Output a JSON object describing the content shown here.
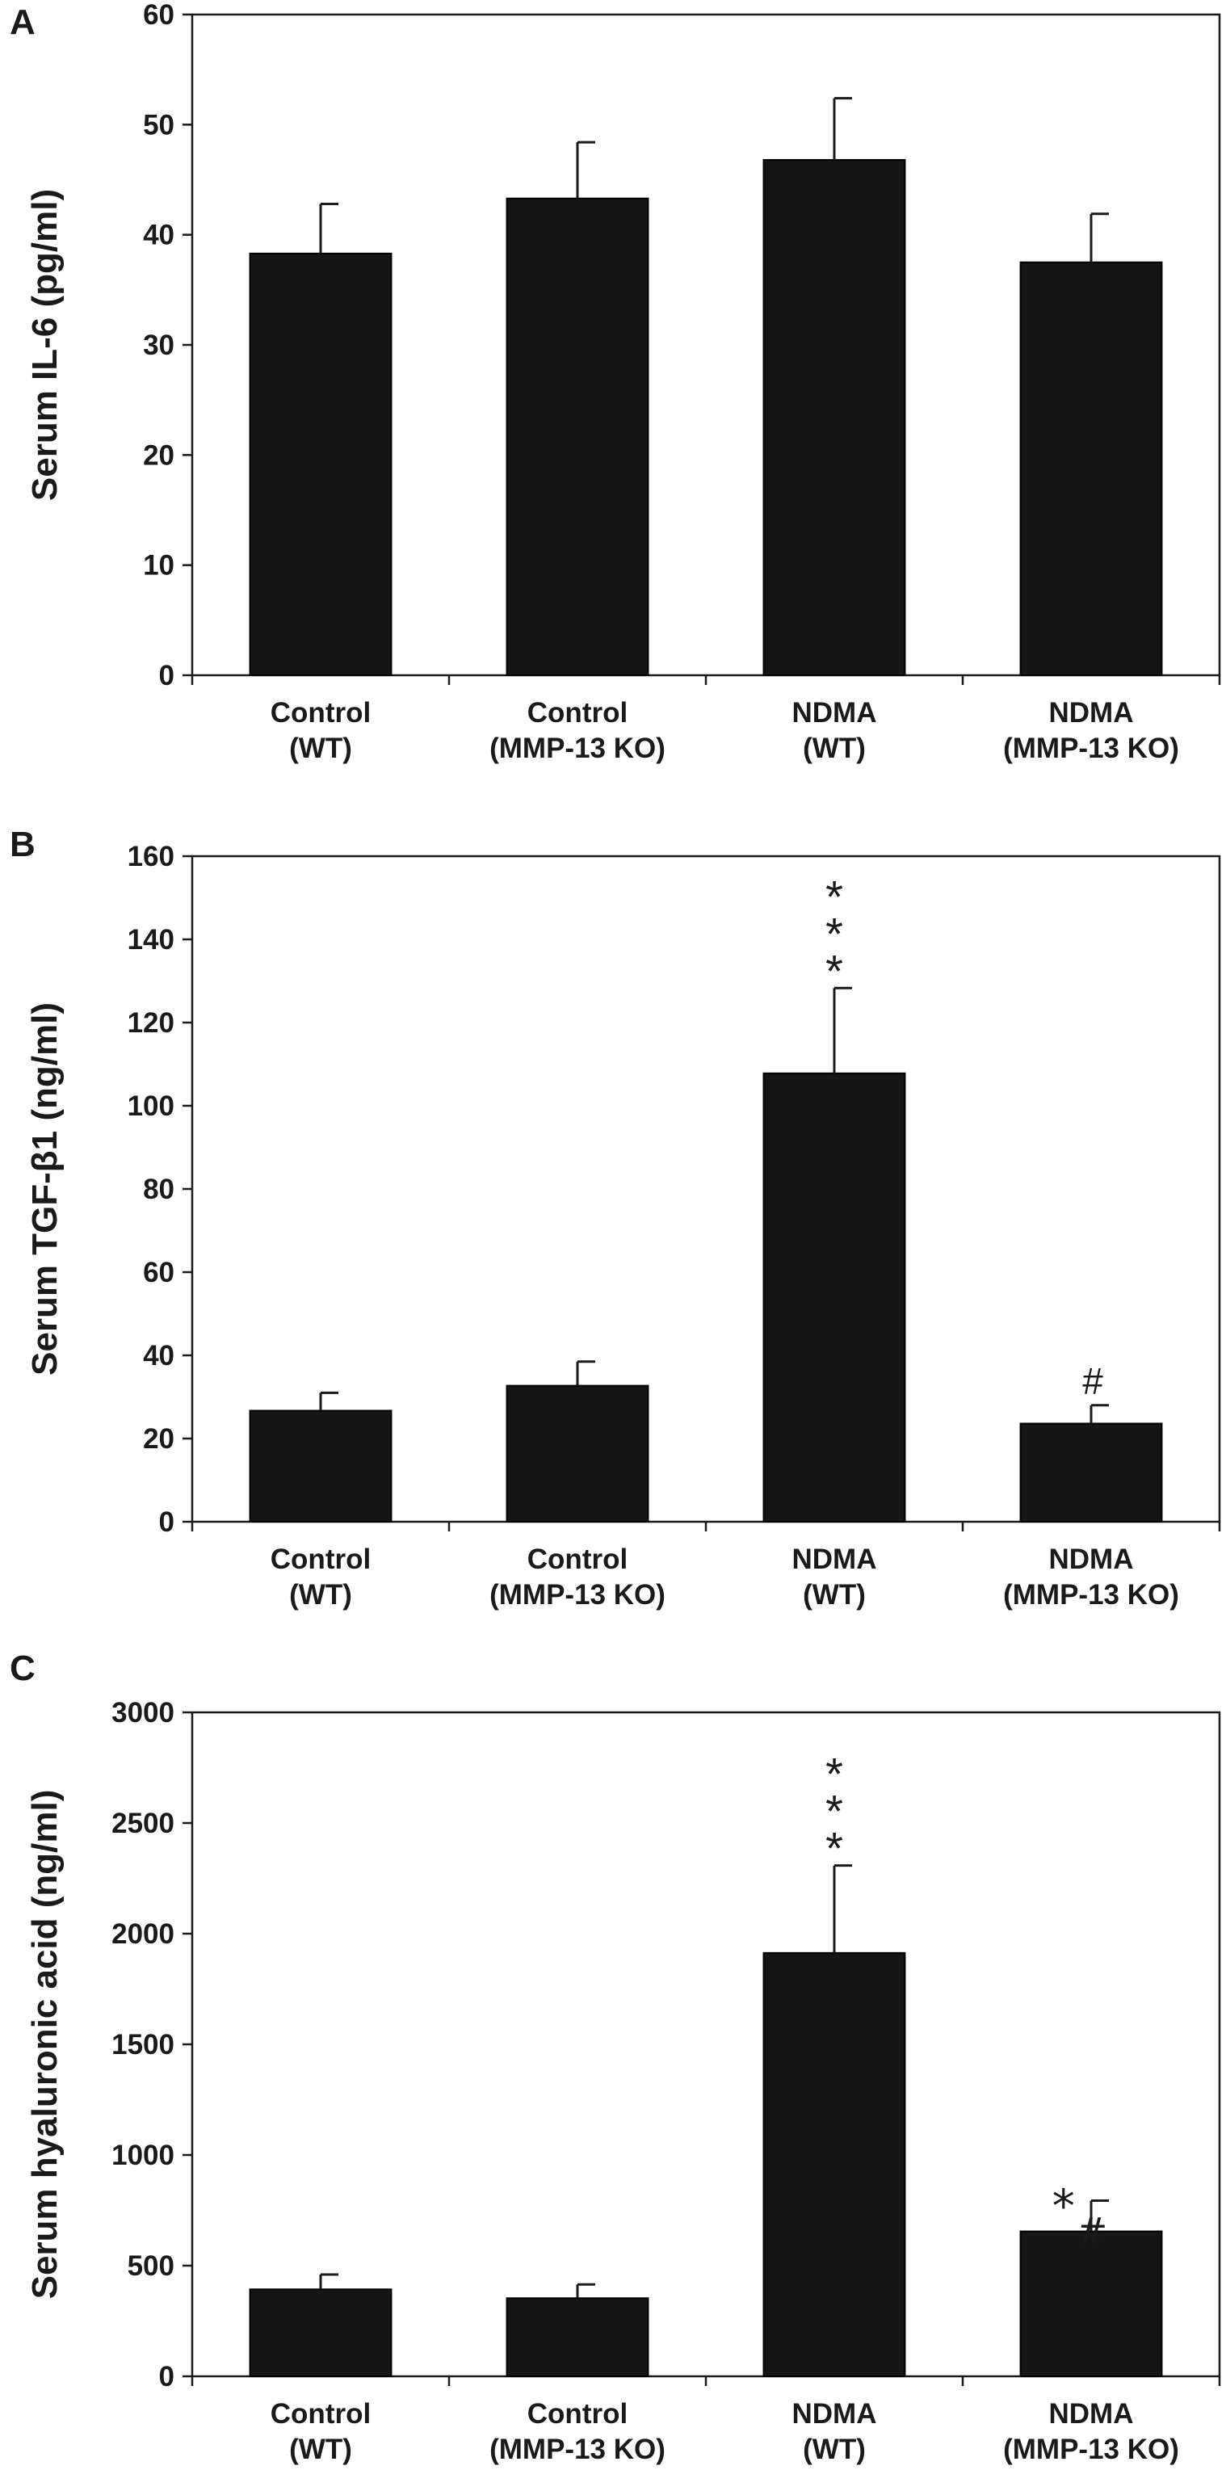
{
  "chart_data": [
    {
      "type": "bar",
      "panel": "A",
      "ylabel": "Serum IL-6 (pg/ml)",
      "ylim": [
        0,
        60
      ],
      "yticks": [
        "0",
        "10",
        "20",
        "30",
        "40",
        "50",
        "60"
      ],
      "categories": [
        [
          "Control",
          "(WT)"
        ],
        [
          "Control",
          "(MMP-13 KO)"
        ],
        [
          "NDMA",
          "(WT)"
        ],
        [
          "NDMA",
          "(MMP-13 KO)"
        ]
      ],
      "values": [
        38.3,
        43.3,
        46.8,
        37.5
      ],
      "errors": [
        4.5,
        5.1,
        5.6,
        4.4
      ],
      "annotations": [
        "",
        "",
        "",
        ""
      ]
    },
    {
      "type": "bar",
      "panel": "B",
      "ylabel": "Serum TGF-β1 (ng/ml)",
      "ylim": [
        0,
        160
      ],
      "yticks": [
        "0",
        "20",
        "40",
        "60",
        "80",
        "100",
        "120",
        "140",
        "160"
      ],
      "categories": [
        [
          "Control",
          "(WT)"
        ],
        [
          "Control",
          "(MMP-13 KO)"
        ],
        [
          "NDMA",
          "(WT)"
        ],
        [
          "NDMA",
          "(MMP-13 KO)"
        ]
      ],
      "values": [
        26.7,
        32.7,
        107.8,
        23.6
      ],
      "errors": [
        4.3,
        5.8,
        20.5,
        4.4
      ],
      "annotations": [
        "",
        "",
        "***",
        "#"
      ]
    },
    {
      "type": "bar",
      "panel": "C",
      "ylabel": "Serum hyaluronic acid (ng/ml)",
      "ylim": [
        0,
        3000
      ],
      "yticks": [
        "0",
        "500",
        "1000",
        "1500",
        "2000",
        "2500",
        "3000"
      ],
      "categories": [
        [
          "Control",
          "(WT)"
        ],
        [
          "Control",
          "(MMP-13 KO)"
        ],
        [
          "NDMA",
          "(WT)"
        ],
        [
          "NDMA",
          "(MMP-13 KO)"
        ]
      ],
      "values": [
        393,
        353,
        1913,
        655
      ],
      "errors": [
        67,
        62,
        395,
        139
      ],
      "annotations": [
        "",
        "",
        "***",
        "*#"
      ]
    }
  ],
  "colors": {
    "bar": "#161616",
    "axis": "#1a1a1a"
  }
}
